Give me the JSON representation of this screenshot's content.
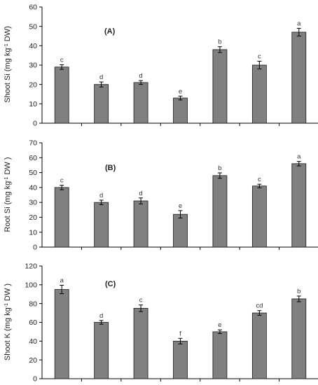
{
  "colors": {
    "bar": "#808080",
    "bar_stroke": "#1a1a1a",
    "axis": "#000000",
    "error_bar": "#000000"
  },
  "chart_data": [
    {
      "type": "bar",
      "panel_label": "(A)",
      "ylabel_text": "Shoot Si (mg kg",
      "ylabel_sup": "-1",
      "ylabel_end": " DW)",
      "ylim": [
        0,
        60
      ],
      "yticks": [
        "0",
        "10",
        "20",
        "30",
        "40",
        "50",
        "60"
      ],
      "grid": false,
      "values": [
        29,
        20,
        21,
        13,
        38,
        30,
        47
      ],
      "errors": [
        1.2,
        1.3,
        1.0,
        1.0,
        1.5,
        2.0,
        2.0
      ],
      "significance": [
        "c",
        "d",
        "d",
        "e",
        "b",
        "c",
        "a"
      ]
    },
    {
      "type": "bar",
      "panel_label": "(B)",
      "ylabel_text": "Root Si (mg kg",
      "ylabel_sup": "-1",
      "ylabel_end": " DW )",
      "ylim": [
        0,
        70
      ],
      "yticks": [
        "0",
        "10",
        "20",
        "30",
        "40",
        "50",
        "60",
        "70"
      ],
      "grid": false,
      "values": [
        40,
        30,
        31,
        22,
        48,
        41,
        56
      ],
      "errors": [
        1.5,
        1.5,
        2.0,
        2.5,
        1.8,
        1.2,
        1.5
      ],
      "significance": [
        "c",
        "d",
        "d",
        "e",
        "b",
        "c",
        "a"
      ]
    },
    {
      "type": "bar",
      "panel_label": "(C)",
      "ylabel_text": "Shoot K (mg kg",
      "ylabel_sup": "-1",
      "ylabel_end": " DW )",
      "ylim": [
        0,
        120
      ],
      "yticks": [
        "0",
        "20",
        "40",
        "60",
        "80",
        "100",
        "120"
      ],
      "grid": false,
      "values": [
        95,
        60,
        75,
        40,
        50,
        70,
        85
      ],
      "errors": [
        4.5,
        2.0,
        3.5,
        3.0,
        2.0,
        2.5,
        3.0
      ],
      "significance": [
        "a",
        "d",
        "c",
        "f",
        "e",
        "cd",
        "b"
      ]
    }
  ]
}
